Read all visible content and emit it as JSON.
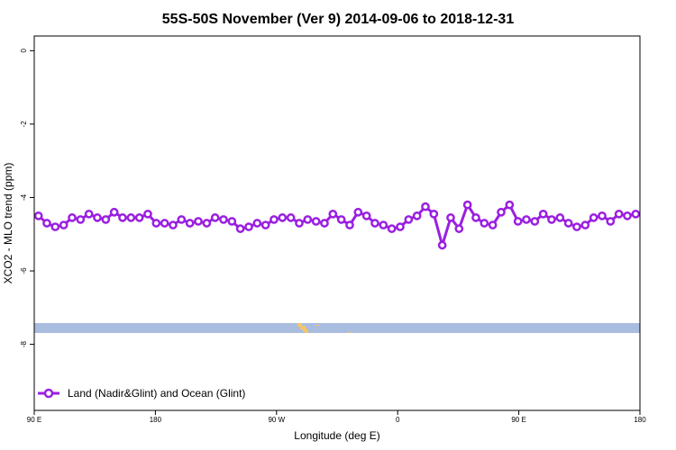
{
  "chart_data": {
    "type": "line",
    "title": "55S-50S November (Ver 9)   2014-09-06 to 2018-12-31",
    "xlabel": "Longitude (deg E)",
    "ylabel": "XCO2 - MLO trend (ppm)",
    "xlim": [
      90,
      450
    ],
    "ylim": [
      -9.8,
      0.4
    ],
    "x_ticks": [
      {
        "value": 90,
        "label": "90 E"
      },
      {
        "value": 162,
        "label": "180"
      },
      {
        "value": 234,
        "label": "90 W"
      },
      {
        "value": 306,
        "label": "0"
      },
      {
        "value": 378,
        "label": "90 E"
      },
      {
        "value": 450,
        "label": "180"
      }
    ],
    "y_ticks": [
      {
        "value": 0,
        "label": "0"
      },
      {
        "value": -2,
        "label": "-2"
      },
      {
        "value": -4,
        "label": "-4"
      },
      {
        "value": -6,
        "label": "-6"
      },
      {
        "value": -8,
        "label": "-8"
      }
    ],
    "colors": {
      "series": "#9a1fe0",
      "ocean": "#a9bddf",
      "land": "#f5c56a"
    },
    "series": [
      {
        "name": "Land (Nadir&Glint) and Ocean (Glint)",
        "x": [
          92.5,
          97.5,
          102.5,
          107.5,
          112.5,
          117.5,
          122.5,
          127.5,
          132.5,
          137.5,
          142.5,
          147.5,
          152.5,
          157.5,
          162.5,
          167.5,
          172.5,
          177.5,
          182.5,
          187.5,
          192.5,
          197.5,
          202.5,
          207.5,
          212.5,
          217.5,
          222.5,
          227.5,
          232.5,
          237.5,
          242.5,
          247.5,
          252.5,
          257.5,
          262.5,
          267.5,
          272.5,
          277.5,
          282.5,
          287.5,
          292.5,
          297.5,
          302.5,
          307.5,
          312.5,
          317.5,
          322.5,
          327.5,
          332.5,
          337.5,
          342.5,
          347.5,
          352.5,
          357.5,
          362.5,
          367.5,
          372.5,
          377.5,
          382.5,
          387.5,
          392.5,
          397.5,
          402.5,
          407.5,
          412.5,
          417.5,
          422.5,
          427.5,
          432.5,
          437.5,
          442.5,
          447.5
        ],
        "values": [
          -4.5,
          -4.7,
          -4.8,
          -4.75,
          -4.55,
          -4.6,
          -4.45,
          -4.55,
          -4.6,
          -4.4,
          -4.55,
          -4.55,
          -4.55,
          -4.45,
          -4.7,
          -4.7,
          -4.75,
          -4.6,
          -4.7,
          -4.65,
          -4.7,
          -4.55,
          -4.6,
          -4.65,
          -4.85,
          -4.8,
          -4.7,
          -4.75,
          -4.6,
          -4.55,
          -4.55,
          -4.7,
          -4.6,
          -4.65,
          -4.7,
          -4.45,
          -4.6,
          -4.75,
          -4.4,
          -4.5,
          -4.7,
          -4.75,
          -4.85,
          -4.8,
          -4.6,
          -4.5,
          -4.25,
          -4.45,
          -5.3,
          -4.55,
          -4.85,
          -4.2,
          -4.55,
          -4.7,
          -4.75,
          -4.4,
          -4.2,
          -4.65,
          -4.6,
          -4.65,
          -4.45,
          -4.6,
          -4.55,
          -4.7,
          -4.8,
          -4.75,
          -4.55,
          -4.5,
          -4.65,
          -4.45,
          -4.5,
          -4.45
        ]
      }
    ],
    "legend_position": "bottom-left",
    "grid": false
  }
}
